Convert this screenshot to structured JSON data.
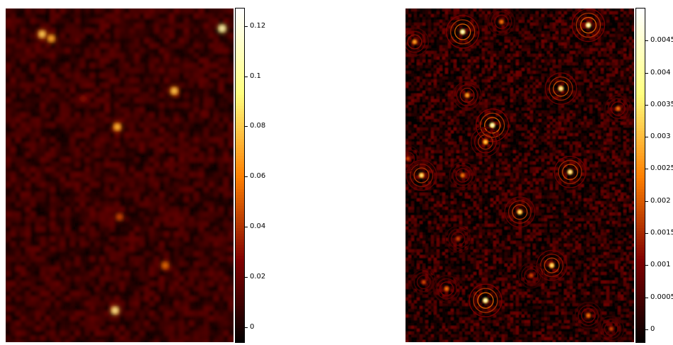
{
  "chart_data": [
    {
      "type": "heatmap",
      "colormap": "afmhot",
      "colorbar": {
        "range": [
          -0.006,
          0.127
        ],
        "tick_values": [
          0,
          0.02,
          0.04,
          0.06,
          0.08,
          0.1,
          0.12
        ],
        "tick_labels": [
          "0",
          "0.02",
          "0.04",
          "0.06",
          "0.08",
          "0.1",
          "0.12"
        ]
      },
      "image_extent": {
        "x": [
          0,
          1
        ],
        "y": [
          0,
          1
        ]
      },
      "background_level": 0.012,
      "sources": [
        {
          "x": 0.16,
          "y": 0.077,
          "peak": 0.1
        },
        {
          "x": 0.2,
          "y": 0.09,
          "peak": 0.085
        },
        {
          "x": 0.95,
          "y": 0.06,
          "peak": 0.127
        },
        {
          "x": 0.74,
          "y": 0.247,
          "peak": 0.095
        },
        {
          "x": 0.34,
          "y": 0.27,
          "peak": 0.035
        },
        {
          "x": 0.49,
          "y": 0.355,
          "peak": 0.09
        },
        {
          "x": 0.87,
          "y": 0.315,
          "peak": 0.025
        },
        {
          "x": 0.5,
          "y": 0.625,
          "peak": 0.055
        },
        {
          "x": 0.7,
          "y": 0.77,
          "peak": 0.065
        },
        {
          "x": 0.48,
          "y": 0.905,
          "peak": 0.115
        },
        {
          "x": 0.77,
          "y": 0.5,
          "peak": 0.02
        }
      ]
    },
    {
      "type": "heatmap",
      "colormap": "afmhot",
      "colorbar": {
        "range": [
          -0.0002,
          0.005
        ],
        "tick_values": [
          0,
          0.0005,
          0.001,
          0.0015,
          0.002,
          0.0025,
          0.003,
          0.0035,
          0.004,
          0.0045
        ],
        "tick_labels": [
          "0",
          "0.0005",
          "0.001",
          "0.0015",
          "0.002",
          "0.0025",
          "0.003",
          "0.0035",
          "0.004",
          "0.0045"
        ]
      },
      "image_extent": {
        "x": [
          0,
          1
        ],
        "y": [
          0,
          1
        ]
      },
      "background_level": 0.0002,
      "sources": [
        {
          "x": 0.25,
          "y": 0.07,
          "peak": 0.005
        },
        {
          "x": 0.8,
          "y": 0.05,
          "peak": 0.005
        },
        {
          "x": 0.68,
          "y": 0.24,
          "peak": 0.0045
        },
        {
          "x": 0.38,
          "y": 0.35,
          "peak": 0.005
        },
        {
          "x": 0.72,
          "y": 0.49,
          "peak": 0.0045
        },
        {
          "x": 0.07,
          "y": 0.5,
          "peak": 0.004
        },
        {
          "x": 0.5,
          "y": 0.61,
          "peak": 0.004
        },
        {
          "x": 0.64,
          "y": 0.77,
          "peak": 0.004
        },
        {
          "x": 0.35,
          "y": 0.875,
          "peak": 0.005
        },
        {
          "x": 0.35,
          "y": 0.4,
          "peak": 0.0035
        },
        {
          "x": 0.04,
          "y": 0.1,
          "peak": 0.003
        },
        {
          "x": 0.27,
          "y": 0.26,
          "peak": 0.003
        },
        {
          "x": 0.93,
          "y": 0.3,
          "peak": 0.0025
        },
        {
          "x": 0.25,
          "y": 0.5,
          "peak": 0.0025
        },
        {
          "x": 0.18,
          "y": 0.84,
          "peak": 0.0025
        },
        {
          "x": 0.08,
          "y": 0.82,
          "peak": 0.002
        },
        {
          "x": 0.8,
          "y": 0.92,
          "peak": 0.0025
        },
        {
          "x": 0.42,
          "y": 0.04,
          "peak": 0.0025
        },
        {
          "x": 0.55,
          "y": 0.8,
          "peak": 0.002
        },
        {
          "x": 0.23,
          "y": 0.69,
          "peak": 0.002
        },
        {
          "x": 0.9,
          "y": 0.96,
          "peak": 0.002
        },
        {
          "x": 0.01,
          "y": 0.45,
          "peak": 0.002
        }
      ]
    }
  ]
}
